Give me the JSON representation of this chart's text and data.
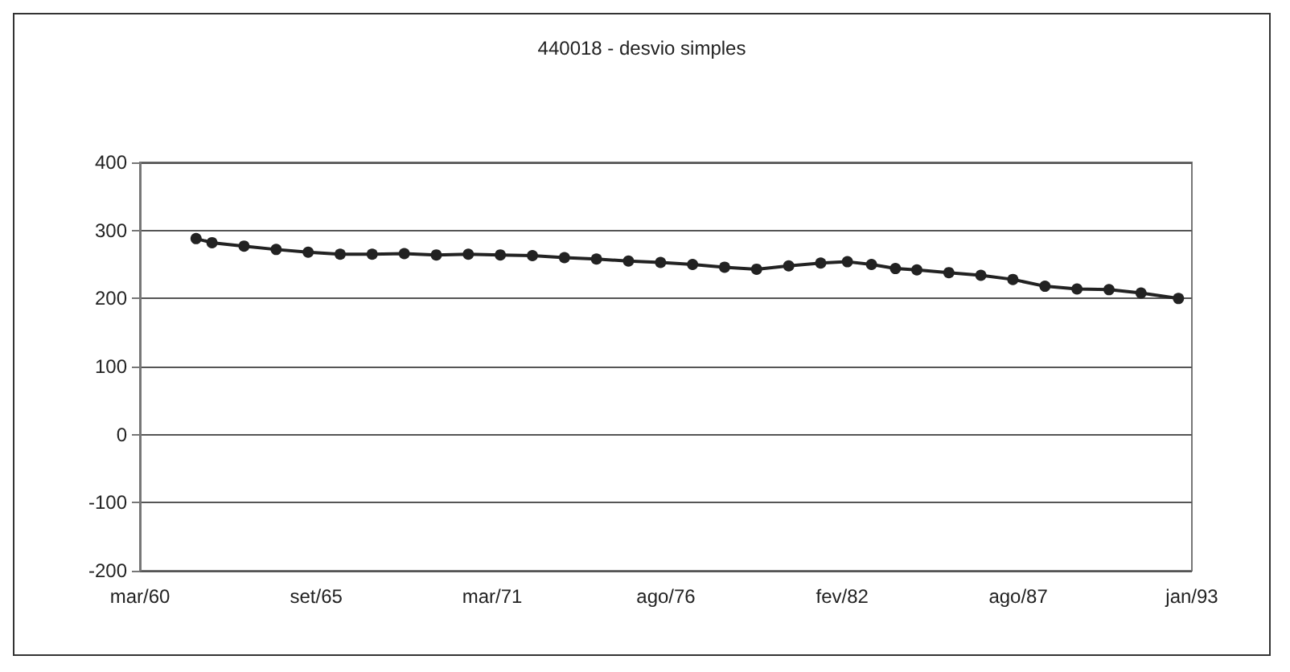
{
  "chart_data": {
    "type": "line",
    "title": "440018 - desvio simples",
    "x": [
      "1961-12",
      "1962-06",
      "1963-06",
      "1964-06",
      "1965-06",
      "1966-06",
      "1967-06",
      "1968-06",
      "1969-06",
      "1970-06",
      "1971-06",
      "1972-06",
      "1973-06",
      "1974-06",
      "1975-06",
      "1976-06",
      "1977-06",
      "1978-06",
      "1979-06",
      "1980-06",
      "1981-06",
      "1982-04",
      "1983-01",
      "1983-10",
      "1984-06",
      "1985-06",
      "1986-06",
      "1987-06",
      "1988-06",
      "1989-06",
      "1990-06",
      "1991-06",
      "1992-08"
    ],
    "series": [
      {
        "color": "#222222",
        "values": [
          288,
          282,
          277,
          272,
          268,
          265,
          265,
          266,
          264,
          265,
          264,
          263,
          260,
          258,
          255,
          253,
          250,
          246,
          243,
          248,
          252,
          254,
          250,
          244,
          242,
          238,
          234,
          228,
          218,
          214,
          213,
          208,
          200
        ]
      }
    ],
    "xlim": [
      "1960-03",
      "1993-01"
    ],
    "xticks": [
      {
        "value": "1960-03",
        "label": "mar/60"
      },
      {
        "value": "1965-09",
        "label": "set/65"
      },
      {
        "value": "1971-03",
        "label": "mar/71"
      },
      {
        "value": "1976-08",
        "label": "ago/76"
      },
      {
        "value": "1982-02",
        "label": "fev/82"
      },
      {
        "value": "1987-08",
        "label": "ago/87"
      },
      {
        "value": "1993-01",
        "label": "jan/93"
      }
    ],
    "ylim": [
      -200,
      400
    ],
    "yticks": [
      -200,
      -100,
      0,
      100,
      200,
      300,
      400
    ],
    "grid": "y",
    "marker": "circle",
    "line_style": "solid"
  }
}
